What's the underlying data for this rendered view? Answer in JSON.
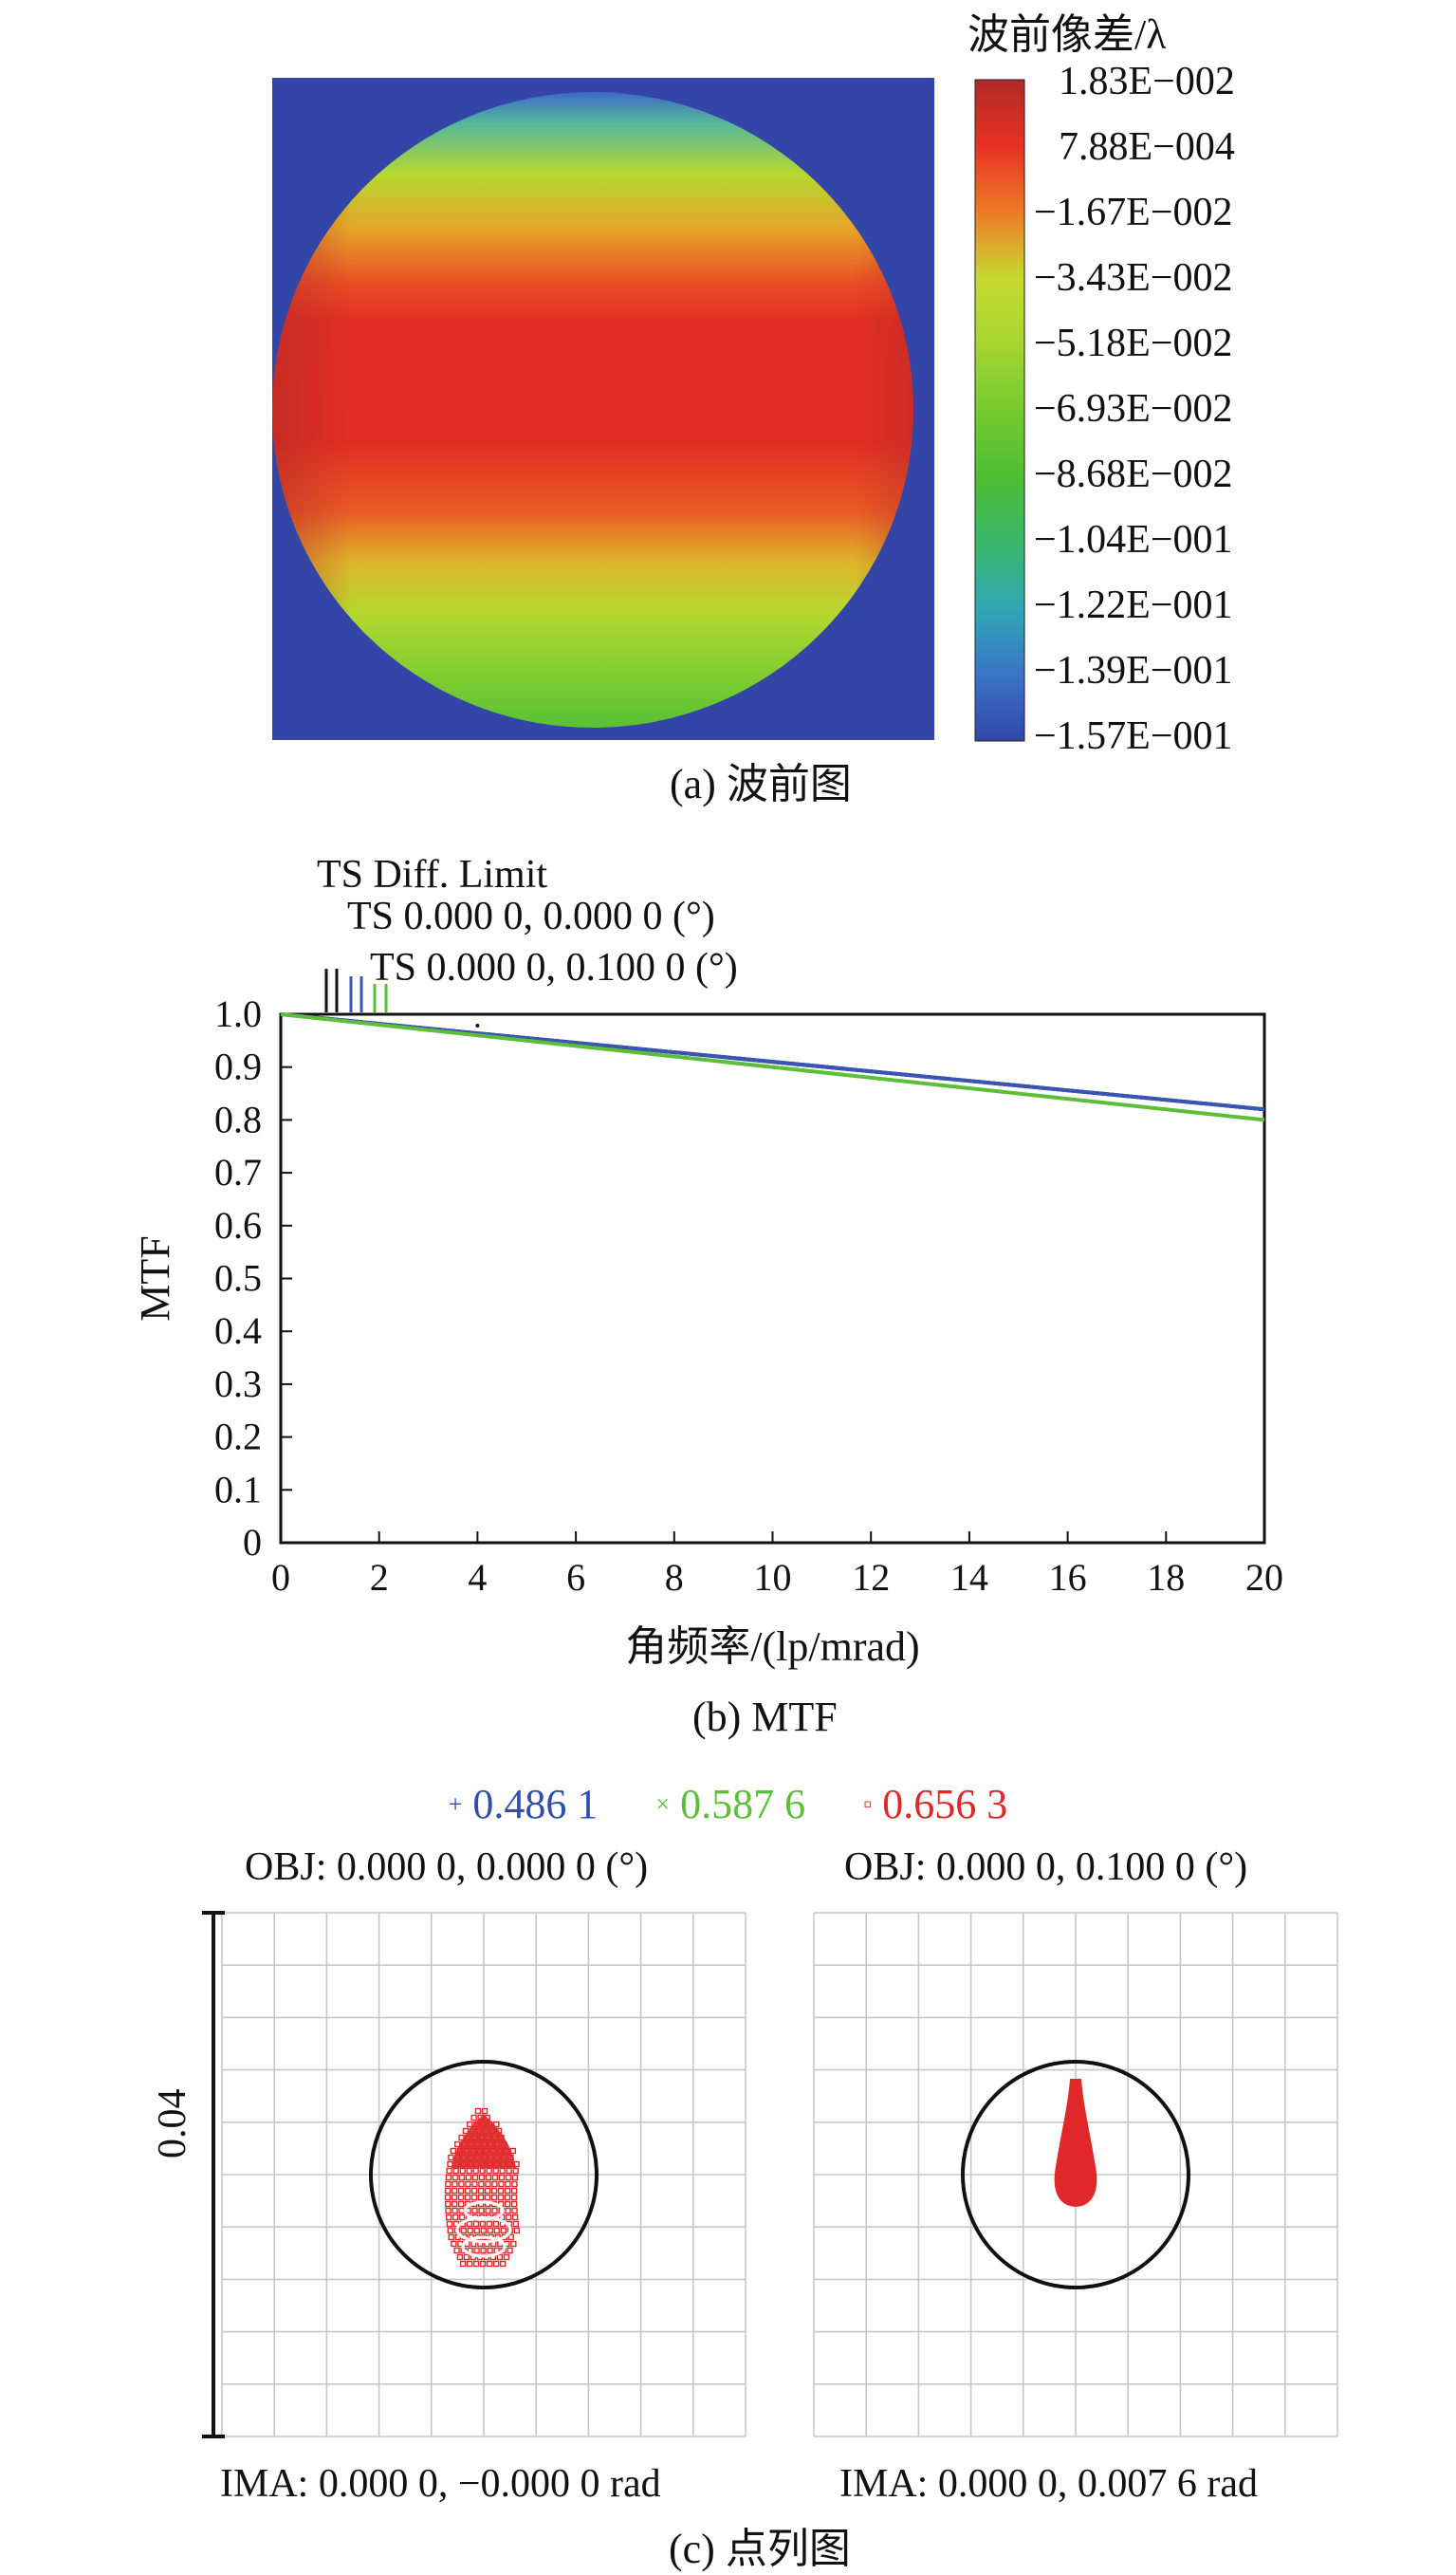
{
  "wavefront": {
    "colorbar_title": "波前像差/λ",
    "colorbar_ticks": [
      "1.83E−002",
      "7.88E−004",
      "−1.67E−002",
      "−3.43E−002",
      "−5.18E−002",
      "−6.93E−002",
      "−8.68E−002",
      "−1.04E−001",
      "−1.22E−001",
      "−1.39E−001",
      "−1.57E−001"
    ],
    "colorbar_colors": [
      "#b02a27",
      "#e83124",
      "#ee7a26",
      "#c7da2f",
      "#8fd22e",
      "#5ec431",
      "#3fb83d",
      "#2fb39a",
      "#2f98c7",
      "#3d69c4",
      "#3346a8"
    ],
    "background_color": "#3346a8",
    "caption": "(a) 波前图"
  },
  "chart_data": {
    "type": "line",
    "xlabel": "角频率/(lp/mrad)",
    "ylabel": "MTF",
    "xlim": [
      0,
      20
    ],
    "ylim": [
      0,
      1.0
    ],
    "x_ticks": [
      "0",
      "2",
      "4",
      "6",
      "8",
      "10",
      "12",
      "14",
      "16",
      "18",
      "20"
    ],
    "y_ticks": [
      "0",
      "0.1",
      "0.2",
      "0.3",
      "0.4",
      "0.5",
      "0.6",
      "0.7",
      "0.8",
      "0.9",
      "1.0"
    ],
    "legend": [
      "TS Diff. Limit",
      "TS 0.000 0, 0.000 0 (°)",
      "TS 0.000 0, 0.100 0 (°)"
    ],
    "series": [
      {
        "name": "TS Diff. Limit",
        "color": "#111111",
        "x": [
          0,
          20
        ],
        "y": [
          1.0,
          0.82
        ]
      },
      {
        "name": "TS 0.000 0, 0.000 0 (°)",
        "color": "#3a55b4",
        "x": [
          0,
          20
        ],
        "y": [
          1.0,
          0.82
        ]
      },
      {
        "name": "TS 0.000 0, 0.100 0 (°)",
        "color": "#5cbf3a",
        "x": [
          0,
          20
        ],
        "y": [
          1.0,
          0.8
        ]
      }
    ],
    "grid": false,
    "caption": "(b) MTF"
  },
  "spot": {
    "wavelengths": [
      {
        "symbol": "+",
        "label": "0.486 1",
        "color": "#2f4fb0"
      },
      {
        "symbol": "×",
        "label": "0.587 6",
        "color": "#5cbf3a"
      },
      {
        "symbol": "▫",
        "label": "0.656 3",
        "color": "#e0282a"
      }
    ],
    "scale_label": "0.04",
    "left": {
      "obj": "OBJ: 0.000 0, 0.000 0 (°)",
      "ima": "IMA: 0.000 0, −0.000 0 rad"
    },
    "right": {
      "obj": "OBJ: 0.000 0, 0.100 0 (°)",
      "ima": "IMA: 0.000 0, 0.007 6 rad"
    },
    "spot_color": "#e0282a",
    "caption": "(c) 点列图"
  }
}
